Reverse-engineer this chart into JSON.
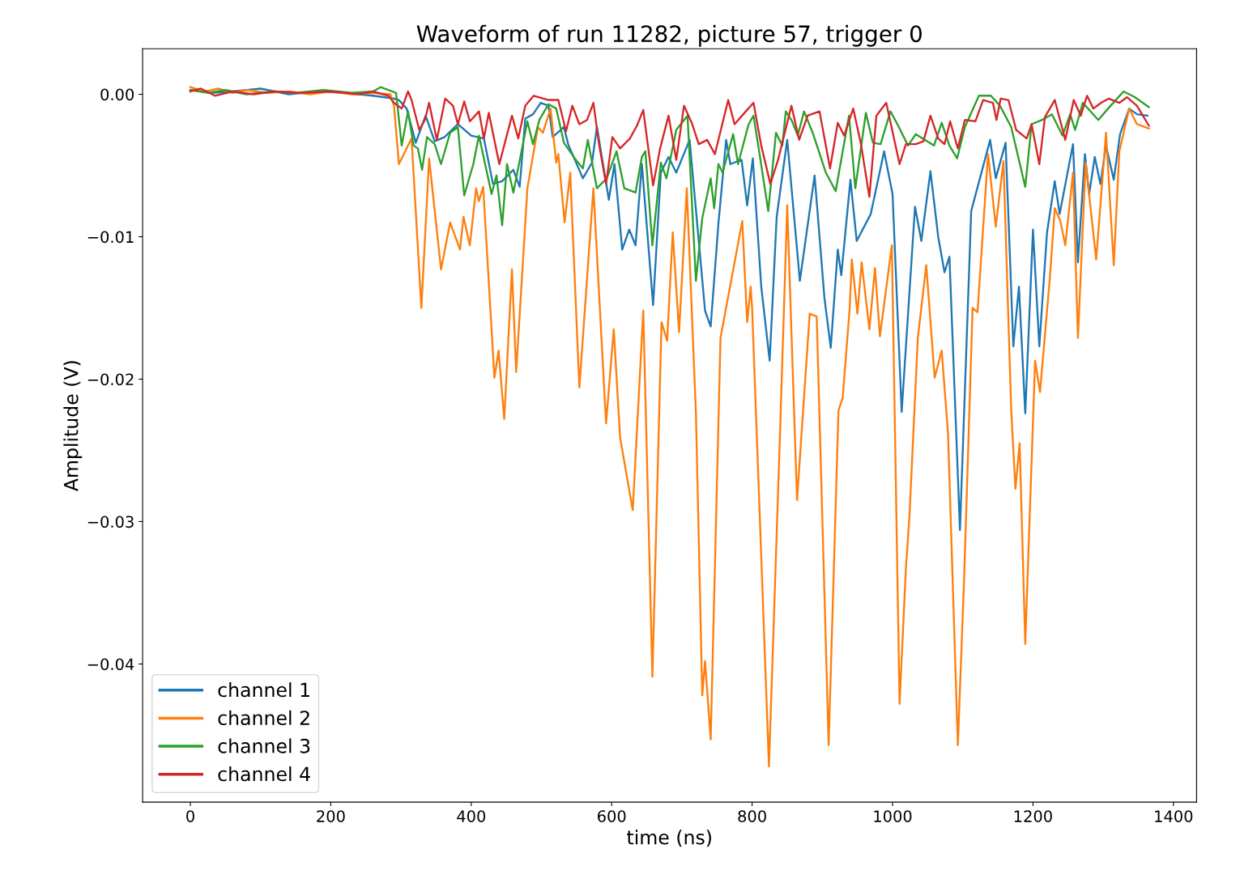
{
  "chart_data": {
    "type": "line",
    "title": "Waveform of run 11282, picture 57, trigger 0",
    "xlabel": "time (ns)",
    "ylabel": "Amplitude (V)",
    "xlim": [
      -68,
      1433
    ],
    "ylim": [
      -0.0497,
      0.0032
    ],
    "xticks": [
      0,
      200,
      400,
      600,
      800,
      1000,
      1200,
      1400
    ],
    "yticks": [
      {
        "value": -0.04,
        "label": "−0.04"
      },
      {
        "value": -0.03,
        "label": "−0.03"
      },
      {
        "value": -0.02,
        "label": "−0.02"
      },
      {
        "value": -0.01,
        "label": "−0.01"
      },
      {
        "value": 0,
        "label": "0.00"
      }
    ],
    "grid": false,
    "legend": "bottom left",
    "marker": "none",
    "line_style": "solid",
    "series": [
      {
        "name": "channel 1",
        "color": "#1f77b4",
        "x": [
          0,
          30,
          60,
          100,
          140,
          180,
          220,
          260,
          290,
          297,
          308,
          321,
          335,
          348,
          362,
          381,
          400,
          418,
          431,
          444,
          460,
          469,
          477,
          488,
          499,
          510,
          516,
          532,
          538,
          559,
          572,
          579,
          596,
          604,
          615,
          625,
          634,
          643,
          659,
          670,
          681,
          692,
          711,
          733,
          741,
          752,
          763,
          769,
          785,
          793,
          801,
          813,
          825,
          835,
          850,
          868,
          889,
          903,
          912,
          922,
          927,
          940,
          949,
          969,
          988,
          1000,
          1013,
          1032,
          1041,
          1054,
          1065,
          1074,
          1081,
          1096,
          1112,
          1139,
          1147,
          1161,
          1172,
          1180,
          1189,
          1200,
          1209,
          1220,
          1231,
          1238,
          1257,
          1264,
          1274,
          1280,
          1288,
          1296,
          1304,
          1315,
          1324,
          1337,
          1348,
          1363
        ],
        "values": [
          0.0003,
          0.0001,
          0.0002,
          0.0004,
          0,
          0.0002,
          0.0001,
          -0.0001,
          -0.0003,
          -0.0004,
          -0.001,
          -0.0034,
          -0.0015,
          -0.0033,
          -0.003,
          -0.0021,
          -0.0029,
          -0.0031,
          -0.0063,
          -0.0061,
          -0.0053,
          -0.0065,
          -0.0017,
          -0.0014,
          -0.0006,
          -0.0008,
          -0.003,
          -0.0023,
          -0.0035,
          -0.0059,
          -0.0048,
          -0.0023,
          -0.0074,
          -0.0049,
          -0.0109,
          -0.0095,
          -0.0106,
          -0.0049,
          -0.0148,
          -0.0055,
          -0.0044,
          -0.0055,
          -0.0032,
          -0.0152,
          -0.0163,
          -0.0091,
          -0.0032,
          -0.0049,
          -0.0046,
          -0.0078,
          -0.0045,
          -0.0135,
          -0.0187,
          -0.0086,
          -0.0032,
          -0.0131,
          -0.0057,
          -0.0143,
          -0.0178,
          -0.0109,
          -0.0127,
          -0.006,
          -0.0103,
          -0.0084,
          -0.004,
          -0.007,
          -0.0223,
          -0.0079,
          -0.0103,
          -0.0054,
          -0.01,
          -0.0125,
          -0.0114,
          -0.0306,
          -0.0082,
          -0.0032,
          -0.0059,
          -0.0034,
          -0.0177,
          -0.0135,
          -0.0224,
          -0.0095,
          -0.0177,
          -0.0097,
          -0.0061,
          -0.0084,
          -0.0035,
          -0.0118,
          -0.0042,
          -0.007,
          -0.0044,
          -0.0063,
          -0.0036,
          -0.006,
          -0.0028,
          -0.001,
          -0.0014,
          -0.0015
        ]
      },
      {
        "name": "channel 2",
        "color": "#ff7f0e",
        "x": [
          0,
          20,
          40,
          60,
          80,
          110,
          140,
          170,
          200,
          230,
          260,
          285,
          290,
          297,
          315,
          329,
          340,
          357,
          370,
          384,
          389,
          398,
          407,
          411,
          417,
          433,
          439,
          447,
          458,
          464,
          480,
          495,
          502,
          513,
          521,
          524,
          533,
          541,
          554,
          574,
          592,
          603,
          612,
          630,
          645,
          658,
          671,
          679,
          687,
          696,
          707,
          720,
          729,
          733,
          741,
          755,
          786,
          793,
          798,
          800,
          824,
          840,
          850,
          864,
          882,
          892,
          909,
          923,
          929,
          939,
          942,
          950,
          956,
          967,
          975,
          982,
          999,
          1010,
          1019,
          1024,
          1036,
          1048,
          1060,
          1070,
          1079,
          1093,
          1102,
          1114,
          1121,
          1136,
          1147,
          1158,
          1169,
          1175,
          1181,
          1189,
          1203,
          1210,
          1224,
          1231,
          1239,
          1246,
          1257,
          1264,
          1275,
          1290,
          1304,
          1315,
          1323,
          1337,
          1348,
          1365
        ],
        "values": [
          0.0005,
          0.0002,
          0.0004,
          0.0001,
          0.0003,
          0.0001,
          0.0002,
          0,
          0.0002,
          0,
          0.0001,
          0,
          -0.0008,
          -0.0049,
          -0.0031,
          -0.015,
          -0.0045,
          -0.0123,
          -0.009,
          -0.0109,
          -0.0086,
          -0.0106,
          -0.0066,
          -0.0075,
          -0.0065,
          -0.0199,
          -0.018,
          -0.0228,
          -0.0123,
          -0.0195,
          -0.0066,
          -0.0023,
          -0.0027,
          -0.001,
          -0.0048,
          -0.0042,
          -0.009,
          -0.0055,
          -0.0206,
          -0.0066,
          -0.0231,
          -0.0165,
          -0.0241,
          -0.0292,
          -0.0152,
          -0.0409,
          -0.016,
          -0.0173,
          -0.0097,
          -0.0167,
          -0.0066,
          -0.0224,
          -0.0422,
          -0.0398,
          -0.0453,
          -0.0171,
          -0.0089,
          -0.016,
          -0.0135,
          -0.015,
          -0.0472,
          -0.0234,
          -0.0078,
          -0.0285,
          -0.0154,
          -0.0156,
          -0.0457,
          -0.0222,
          -0.0213,
          -0.015,
          -0.0116,
          -0.0154,
          -0.0118,
          -0.0165,
          -0.0122,
          -0.017,
          -0.0106,
          -0.0428,
          -0.0333,
          -0.0297,
          -0.0171,
          -0.012,
          -0.0199,
          -0.018,
          -0.0238,
          -0.0457,
          -0.0339,
          -0.015,
          -0.0153,
          -0.0042,
          -0.0093,
          -0.0047,
          -0.0222,
          -0.0277,
          -0.0245,
          -0.0386,
          -0.0187,
          -0.0209,
          -0.0129,
          -0.008,
          -0.0089,
          -0.0106,
          -0.0055,
          -0.0171,
          -0.0048,
          -0.0116,
          -0.0027,
          -0.012,
          -0.004,
          -0.001,
          -0.0021,
          -0.0024
        ]
      },
      {
        "name": "channel 3",
        "color": "#2ca02c",
        "x": [
          0,
          25,
          50,
          80,
          120,
          150,
          190,
          230,
          260,
          271,
          293,
          301,
          310,
          318,
          324,
          330,
          337,
          348,
          357,
          370,
          381,
          390,
          403,
          411,
          429,
          436,
          444,
          451,
          460,
          480,
          488,
          497,
          510,
          521,
          532,
          549,
          559,
          566,
          579,
          593,
          607,
          618,
          634,
          643,
          648,
          658,
          670,
          678,
          692,
          708,
          720,
          729,
          741,
          746,
          752,
          758,
          773,
          780,
          795,
          802,
          810,
          823,
          834,
          843,
          848,
          857,
          865,
          874,
          887,
          905,
          919,
          938,
          947,
          962,
          972,
          983,
          997,
          1008,
          1022,
          1033,
          1059,
          1070,
          1081,
          1092,
          1103,
          1123,
          1140,
          1153,
          1169,
          1189,
          1198,
          1213,
          1227,
          1242,
          1253,
          1260,
          1271,
          1293,
          1307,
          1329,
          1345,
          1365
        ],
        "values": [
          0.0003,
          0.0001,
          0.0003,
          0,
          0.0002,
          0.0001,
          0.0003,
          0.0001,
          0.0002,
          0.0005,
          0.0001,
          -0.0036,
          -0.0012,
          -0.0036,
          -0.0038,
          -0.0053,
          -0.003,
          -0.0035,
          -0.0049,
          -0.0027,
          -0.0023,
          -0.0071,
          -0.0049,
          -0.0029,
          -0.007,
          -0.0057,
          -0.0092,
          -0.0049,
          -0.0069,
          -0.0019,
          -0.0035,
          -0.0018,
          -0.0007,
          -0.001,
          -0.0034,
          -0.0046,
          -0.0052,
          -0.0032,
          -0.0066,
          -0.0059,
          -0.004,
          -0.0066,
          -0.0069,
          -0.0044,
          -0.004,
          -0.0106,
          -0.0048,
          -0.0059,
          -0.0025,
          -0.0015,
          -0.0131,
          -0.0087,
          -0.0059,
          -0.008,
          -0.0049,
          -0.0055,
          -0.0028,
          -0.0049,
          -0.0021,
          -0.0015,
          -0.004,
          -0.0082,
          -0.0027,
          -0.0036,
          -0.0012,
          -0.0019,
          -0.0029,
          -0.0012,
          -0.0028,
          -0.0055,
          -0.0068,
          -0.0015,
          -0.0066,
          -0.0013,
          -0.0034,
          -0.0035,
          -0.0012,
          -0.0022,
          -0.0036,
          -0.0028,
          -0.0036,
          -0.002,
          -0.0036,
          -0.0045,
          -0.0023,
          -0.0001,
          -0.0001,
          -0.0008,
          -0.0023,
          -0.0065,
          -0.0021,
          -0.0018,
          -0.0014,
          -0.0029,
          -0.0014,
          -0.0025,
          -0.0006,
          -0.0018,
          -0.001,
          0.0002,
          -0.0002,
          -0.0009
        ]
      },
      {
        "name": "channel 4",
        "color": "#d62728",
        "x": [
          0,
          15,
          35,
          60,
          90,
          120,
          160,
          200,
          240,
          260,
          282,
          290,
          301,
          310,
          315,
          326,
          334,
          340,
          351,
          363,
          374,
          381,
          390,
          398,
          411,
          418,
          425,
          440,
          458,
          467,
          477,
          489,
          510,
          524,
          535,
          544,
          554,
          565,
          574,
          582,
          592,
          601,
          612,
          626,
          636,
          645,
          659,
          669,
          681,
          692,
          703,
          714,
          724,
          736,
          747,
          766,
          775,
          791,
          802,
          813,
          826,
          837,
          856,
          867,
          879,
          896,
          911,
          922,
          931,
          944,
          955,
          967,
          977,
          991,
          1010,
          1019,
          1033,
          1044,
          1054,
          1065,
          1074,
          1082,
          1093,
          1103,
          1118,
          1129,
          1143,
          1148,
          1154,
          1165,
          1176,
          1191,
          1198,
          1209,
          1217,
          1231,
          1246,
          1258,
          1268,
          1277,
          1286,
          1297,
          1308,
          1323,
          1334,
          1348,
          1365
        ],
        "values": [
          0.0002,
          0.0004,
          -0.0001,
          0.0002,
          0,
          0.0002,
          0.0001,
          0.0002,
          0,
          0.0002,
          -0.0001,
          -0.0006,
          -0.001,
          0.0002,
          -0.0004,
          -0.0025,
          -0.0018,
          -0.0006,
          -0.0032,
          -0.0003,
          -0.0008,
          -0.0021,
          -0.0005,
          -0.0019,
          -0.0012,
          -0.0031,
          -0.0013,
          -0.0049,
          -0.0015,
          -0.0031,
          -0.0008,
          -0.0001,
          -0.0004,
          -0.0004,
          -0.0026,
          -0.0008,
          -0.0021,
          -0.0018,
          -0.0006,
          -0.0035,
          -0.0063,
          -0.003,
          -0.0038,
          -0.0031,
          -0.0022,
          -0.0011,
          -0.0064,
          -0.0038,
          -0.0015,
          -0.0046,
          -0.0008,
          -0.002,
          -0.0035,
          -0.0032,
          -0.0042,
          -0.0004,
          -0.0021,
          -0.0012,
          -0.0006,
          -0.0036,
          -0.0063,
          -0.0046,
          -0.0008,
          -0.0032,
          -0.0015,
          -0.0012,
          -0.0052,
          -0.002,
          -0.0029,
          -0.001,
          -0.0035,
          -0.0072,
          -0.0015,
          -0.0006,
          -0.0049,
          -0.0035,
          -0.0035,
          -0.0033,
          -0.0015,
          -0.0031,
          -0.0035,
          -0.0019,
          -0.0038,
          -0.0018,
          -0.0019,
          -0.0004,
          -0.0006,
          -0.0018,
          -0.0003,
          -0.0004,
          -0.0025,
          -0.0031,
          -0.0021,
          -0.0049,
          -0.0016,
          -0.0004,
          -0.0032,
          -0.0004,
          -0.0015,
          -0.0001,
          -0.001,
          -0.0006,
          -0.0003,
          -0.0006,
          -0.0002,
          -0.0008,
          -0.0022
        ]
      }
    ]
  }
}
